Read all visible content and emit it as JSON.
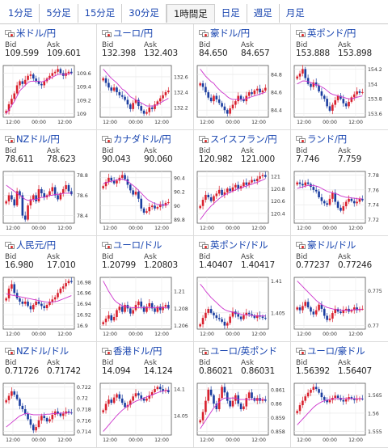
{
  "tabs": [
    {
      "label": "1分足",
      "active": false
    },
    {
      "label": "5分足",
      "active": false
    },
    {
      "label": "15分足",
      "active": false
    },
    {
      "label": "30分足",
      "active": false
    },
    {
      "label": "1時間足",
      "active": true
    },
    {
      "label": "日足",
      "active": false
    },
    {
      "label": "週足",
      "active": false
    },
    {
      "label": "月足",
      "active": false
    }
  ],
  "labels": {
    "bid": "Bid",
    "ask": "Ask"
  },
  "colors": {
    "link": "#1a46b0",
    "up": "#d9212e",
    "down": "#1c3ea0",
    "ma": "#cc33cc"
  },
  "panels": [
    {
      "pair": "米ドル/円",
      "flag": "us",
      "bid": "109.599",
      "ask": "109.601",
      "xticks": [
        "12:00",
        "00:00",
        "12:00"
      ],
      "yticks": [
        "109.6",
        "109.4",
        "109.2",
        "109"
      ],
      "close": [
        109.04,
        109.14,
        109.22,
        109.3,
        109.42,
        109.48,
        109.44,
        109.5,
        109.56,
        109.58,
        109.52,
        109.48,
        109.44,
        109.42,
        109.48,
        109.52,
        109.56,
        109.6,
        109.62,
        109.66,
        109.6,
        109.56,
        109.6,
        109.62,
        109.6
      ],
      "ma": [
        109.0,
        109.06,
        109.12,
        109.18,
        109.26,
        109.34,
        109.38,
        109.42,
        109.46,
        109.48,
        109.48,
        109.48,
        109.48,
        109.47,
        109.48,
        109.5,
        109.52,
        109.54,
        109.56,
        109.58,
        109.58,
        109.58,
        109.58,
        109.59,
        109.6
      ]
    },
    {
      "pair": "ユーロ/円",
      "flag": "eu",
      "bid": "132.398",
      "ask": "132.403",
      "xticks": [
        "12:00",
        "00:00",
        "12:00"
      ],
      "yticks": [
        "132.6",
        "132.4",
        "132.2"
      ],
      "close": [
        132.58,
        132.52,
        132.46,
        132.42,
        132.46,
        132.4,
        132.36,
        132.34,
        132.3,
        132.24,
        132.18,
        132.26,
        132.3,
        132.22,
        132.16,
        132.12,
        132.14,
        132.2,
        132.18,
        132.24,
        132.28,
        132.32,
        132.36,
        132.4,
        132.42
      ],
      "ma": [
        132.7,
        132.66,
        132.62,
        132.58,
        132.55,
        132.52,
        132.48,
        132.44,
        132.42,
        132.38,
        132.34,
        132.32,
        132.3,
        132.28,
        132.26,
        132.24,
        132.22,
        132.22,
        132.22,
        132.22,
        132.24,
        132.26,
        132.28,
        132.3,
        132.32
      ]
    },
    {
      "pair": "豪ドル/円",
      "flag": "au",
      "bid": "84.650",
      "ask": "84.657",
      "xticks": [
        "12:00",
        "00:00",
        "12:00"
      ],
      "yticks": [
        "84.8",
        "84.6",
        "84.4"
      ],
      "close": [
        84.7,
        84.66,
        84.6,
        84.54,
        84.5,
        84.56,
        84.52,
        84.48,
        84.44,
        84.4,
        84.36,
        84.42,
        84.46,
        84.5,
        84.56,
        84.52,
        84.5,
        84.56,
        84.6,
        84.58,
        84.62,
        84.64,
        84.6,
        84.62,
        84.65
      ],
      "ma": [
        84.86,
        84.82,
        84.78,
        84.75,
        84.72,
        84.7,
        84.66,
        84.63,
        84.6,
        84.58,
        84.55,
        84.53,
        84.52,
        84.52,
        84.52,
        84.52,
        84.52,
        84.53,
        84.54,
        84.55,
        84.56,
        84.57,
        84.58,
        84.59,
        84.6
      ]
    },
    {
      "pair": "英ポンド/円",
      "flag": "gb",
      "bid": "153.888",
      "ask": "153.898",
      "xticks": [
        "12:00",
        "00:00",
        "12:00"
      ],
      "yticks": [
        "154.2",
        "154",
        "153.8",
        "153.6"
      ],
      "close": [
        154.1,
        154.14,
        154.2,
        154.08,
        154.0,
        153.96,
        154.02,
        153.98,
        153.9,
        153.84,
        153.8,
        153.7,
        153.64,
        153.72,
        153.78,
        153.84,
        153.8,
        153.74,
        153.7,
        153.76,
        153.82,
        153.86,
        153.9,
        153.88,
        153.89
      ],
      "ma": [
        154.0,
        154.02,
        154.04,
        154.04,
        154.03,
        154.02,
        154.0,
        153.99,
        153.98,
        153.96,
        153.94,
        153.91,
        153.88,
        153.86,
        153.85,
        153.84,
        153.83,
        153.82,
        153.81,
        153.8,
        153.8,
        153.81,
        153.82,
        153.83,
        153.84
      ]
    },
    {
      "pair": "NZドル/円",
      "flag": "nz",
      "bid": "78.611",
      "ask": "78.623",
      "xticks": [
        "12:00",
        "00:00",
        "12:00"
      ],
      "yticks": [
        "78.8",
        "78.6",
        "78.4"
      ],
      "close": [
        78.54,
        78.6,
        78.56,
        78.5,
        78.64,
        78.6,
        78.4,
        78.36,
        78.5,
        78.56,
        78.6,
        78.54,
        78.66,
        78.62,
        78.58,
        78.6,
        78.64,
        78.68,
        78.6,
        78.56,
        78.62,
        78.66,
        78.7,
        78.64,
        78.61
      ],
      "ma": [
        78.7,
        78.68,
        78.66,
        78.64,
        78.62,
        78.6,
        78.58,
        78.56,
        78.55,
        78.55,
        78.56,
        78.56,
        78.57,
        78.58,
        78.58,
        78.59,
        78.6,
        78.6,
        78.61,
        78.61,
        78.61,
        78.62,
        78.62,
        78.62,
        78.62
      ]
    },
    {
      "pair": "カナダドル/円",
      "flag": "ca",
      "bid": "90.043",
      "ask": "90.060",
      "xticks": [
        "12:00",
        "00:00",
        "12:00"
      ],
      "yticks": [
        "90.4",
        "90.2",
        "90",
        "89.8"
      ],
      "close": [
        90.28,
        90.34,
        90.4,
        90.36,
        90.32,
        90.36,
        90.4,
        90.44,
        90.38,
        90.3,
        90.22,
        90.16,
        90.2,
        90.1,
        89.96,
        89.9,
        89.92,
        89.98,
        90.0,
        89.96,
        89.98,
        90.02,
        90.0,
        90.04,
        90.05
      ],
      "ma": [
        90.32,
        90.33,
        90.34,
        90.35,
        90.36,
        90.37,
        90.38,
        90.38,
        90.37,
        90.35,
        90.32,
        90.29,
        90.26,
        90.22,
        90.18,
        90.14,
        90.1,
        90.07,
        90.05,
        90.03,
        90.02,
        90.01,
        90.01,
        90.01,
        90.02
      ]
    },
    {
      "pair": "スイスフラン/円",
      "flag": "ch",
      "bid": "120.982",
      "ask": "121.000",
      "xticks": [
        "12:00",
        "00:00",
        "12:00"
      ],
      "yticks": [
        "121",
        "120.8",
        "120.6",
        "120.4"
      ],
      "close": [
        120.52,
        120.62,
        120.7,
        120.66,
        120.6,
        120.68,
        120.72,
        120.78,
        120.7,
        120.74,
        120.8,
        120.76,
        120.82,
        120.86,
        120.8,
        120.84,
        120.9,
        120.86,
        120.9,
        120.94,
        120.92,
        120.96,
        121.0,
        121.02,
        120.99
      ],
      "ma": [
        120.3,
        120.36,
        120.42,
        120.47,
        120.52,
        120.56,
        120.6,
        120.64,
        120.67,
        120.7,
        120.72,
        120.74,
        120.76,
        120.78,
        120.8,
        120.81,
        120.83,
        120.84,
        120.86,
        120.87,
        120.89,
        120.9,
        120.92,
        120.94,
        120.96
      ]
    },
    {
      "pair": "ランド/円",
      "flag": "za",
      "bid": "7.746",
      "ask": "7.759",
      "xticks": [
        "12:00",
        "00:00",
        "12:00"
      ],
      "yticks": [
        "7.78",
        "7.76",
        "7.74",
        "7.72"
      ],
      "close": [
        7.77,
        7.768,
        7.766,
        7.77,
        7.768,
        7.764,
        7.76,
        7.758,
        7.75,
        7.745,
        7.742,
        7.74,
        7.748,
        7.756,
        7.744,
        7.736,
        7.732,
        7.738,
        7.744,
        7.748,
        7.745,
        7.742,
        7.744,
        7.748,
        7.746
      ],
      "ma": [
        7.762,
        7.763,
        7.764,
        7.765,
        7.766,
        7.766,
        7.766,
        7.765,
        7.764,
        7.762,
        7.76,
        7.758,
        7.757,
        7.756,
        7.755,
        7.754,
        7.752,
        7.751,
        7.75,
        7.75,
        7.749,
        7.749,
        7.748,
        7.748,
        7.748
      ]
    },
    {
      "pair": "人民元/円",
      "flag": "cn",
      "bid": "16.980",
      "ask": "17.010",
      "xticks": [
        "12:00",
        "00:00",
        "12:00"
      ],
      "yticks": [
        "16.98",
        "16.96",
        "16.94",
        "16.92",
        "16.9"
      ],
      "close": [
        16.95,
        16.968,
        16.976,
        16.96,
        16.95,
        16.944,
        16.94,
        16.944,
        16.936,
        16.93,
        16.938,
        16.944,
        16.94,
        16.936,
        16.932,
        16.938,
        16.944,
        16.948,
        16.952,
        16.96,
        16.968,
        16.972,
        16.978,
        16.982,
        16.98
      ],
      "ma": [
        16.958,
        16.957,
        16.956,
        16.955,
        16.954,
        16.953,
        16.952,
        16.951,
        16.95,
        16.949,
        16.948,
        16.947,
        16.946,
        16.945,
        16.944,
        16.943,
        16.943,
        16.943,
        16.944,
        16.945,
        16.947,
        16.949,
        16.951,
        16.953,
        16.955
      ]
    },
    {
      "pair": "ユーロ/ドル",
      "flag": "us",
      "bid": "1.20799",
      "ask": "1.20803",
      "xticks": [
        "12:00",
        "00:00",
        "12:00"
      ],
      "yticks": [
        "1.21",
        "1.208",
        "1.206"
      ],
      "close": [
        1.2064,
        1.2068,
        1.2072,
        1.2066,
        1.207,
        1.2078,
        1.2082,
        1.2076,
        1.2084,
        1.208,
        1.2074,
        1.2078,
        1.2084,
        1.2088,
        1.2082,
        1.2076,
        1.2082,
        1.2086,
        1.208,
        1.2076,
        1.2082,
        1.2078,
        1.2082,
        1.2084,
        1.208
      ],
      "ma": [
        1.2112,
        1.2106,
        1.21,
        1.2095,
        1.209,
        1.2087,
        1.2085,
        1.2083,
        1.2082,
        1.2082,
        1.2081,
        1.2081,
        1.2081,
        1.2081,
        1.2081,
        1.2081,
        1.2081,
        1.2081,
        1.2081,
        1.2081,
        1.2081,
        1.2081,
        1.2081,
        1.2081,
        1.2081
      ]
    },
    {
      "pair": "英ポンド/ドル",
      "flag": "gb",
      "bid": "1.40407",
      "ask": "1.40417",
      "xticks": [
        "12:00",
        "00:00",
        "12:00"
      ],
      "yticks": [
        "1.41",
        "1.405"
      ],
      "close": [
        1.4032,
        1.4042,
        1.405,
        1.4056,
        1.405,
        1.4046,
        1.4042,
        1.404,
        1.4036,
        1.403,
        1.4034,
        1.4044,
        1.4052,
        1.4048,
        1.4044,
        1.404,
        1.4046,
        1.405,
        1.4048,
        1.4046,
        1.4042,
        1.4046,
        1.4044,
        1.4042,
        1.4041
      ],
      "ma": [
        1.4095,
        1.409,
        1.4084,
        1.4079,
        1.4074,
        1.407,
        1.4066,
        1.4062,
        1.4058,
        1.4055,
        1.4053,
        1.4052,
        1.4051,
        1.405,
        1.4049,
        1.4048,
        1.4047,
        1.4047,
        1.4046,
        1.4046,
        1.4045,
        1.4045,
        1.4045,
        1.4045,
        1.4045
      ]
    },
    {
      "pair": "豪ドル/ドル",
      "flag": "au",
      "bid": "0.77237",
      "ask": "0.77246",
      "xticks": [
        "12:00",
        "00:00",
        "12:00"
      ],
      "yticks": [
        "0.775",
        "0.77"
      ],
      "close": [
        0.7726,
        0.7722,
        0.7728,
        0.7734,
        0.7726,
        0.772,
        0.7716,
        0.7722,
        0.773,
        0.7724,
        0.7714,
        0.7708,
        0.771,
        0.7718,
        0.7724,
        0.772,
        0.7718,
        0.7722,
        0.7724,
        0.772,
        0.7722,
        0.7726,
        0.7722,
        0.7724,
        0.7724
      ],
      "ma": [
        0.7764,
        0.776,
        0.7756,
        0.7752,
        0.7748,
        0.7744,
        0.774,
        0.7736,
        0.7733,
        0.773,
        0.7728,
        0.7726,
        0.7725,
        0.7724,
        0.7723,
        0.7723,
        0.7722,
        0.7722,
        0.7722,
        0.7722,
        0.7722,
        0.7723,
        0.7723,
        0.7723,
        0.7723
      ]
    },
    {
      "pair": "NZドル/ドル",
      "flag": "nz",
      "bid": "0.71726",
      "ask": "0.71742",
      "xticks": [
        "12:00",
        "00:00",
        "12:00"
      ],
      "yticks": [
        "0.722",
        "0.72",
        "0.718",
        "0.716",
        "0.714"
      ],
      "close": [
        0.7196,
        0.7204,
        0.7212,
        0.7206,
        0.7198,
        0.7186,
        0.718,
        0.7172,
        0.7162,
        0.7152,
        0.7142,
        0.7148,
        0.716,
        0.7168,
        0.7164,
        0.7158,
        0.7162,
        0.717,
        0.7176,
        0.7172,
        0.7168,
        0.7172,
        0.7176,
        0.7174,
        0.7173
      ],
      "ma": [
        0.7148,
        0.7152,
        0.7156,
        0.716,
        0.7164,
        0.7168,
        0.717,
        0.7172,
        0.7172,
        0.7171,
        0.717,
        0.717,
        0.717,
        0.717,
        0.717,
        0.7171,
        0.7171,
        0.7172,
        0.7172,
        0.7172,
        0.7173,
        0.7173,
        0.7173,
        0.7174,
        0.7174
      ]
    },
    {
      "pair": "香港ドル/円",
      "flag": "hk",
      "bid": "14.094",
      "ask": "14.124",
      "xticks": [
        "12:00",
        "00:00",
        "12:00"
      ],
      "yticks": [
        "14.1",
        "14.05"
      ],
      "close": [
        14.06,
        14.072,
        14.08,
        14.074,
        14.084,
        14.09,
        14.082,
        14.074,
        14.066,
        14.07,
        14.078,
        14.086,
        14.092,
        14.088,
        14.082,
        14.078,
        14.082,
        14.088,
        14.094,
        14.1,
        14.104,
        14.1,
        14.096,
        14.098,
        14.094
      ],
      "ma": [
        14.02,
        14.026,
        14.032,
        14.038,
        14.044,
        14.05,
        14.055,
        14.06,
        14.064,
        14.068,
        14.071,
        14.074,
        14.077,
        14.079,
        14.081,
        14.083,
        14.085,
        14.087,
        14.089,
        14.091,
        14.093,
        14.095,
        14.096,
        14.097,
        14.098
      ]
    },
    {
      "pair": "ユーロ/英ポンド",
      "flag": "eu",
      "bid": "0.86021",
      "ask": "0.86031",
      "xticks": [
        "12:00",
        "00:00",
        "12:00"
      ],
      "yticks": [
        "0.861",
        "0.86",
        "0.859",
        "0.858"
      ],
      "close": [
        0.8588,
        0.8594,
        0.8602,
        0.861,
        0.8606,
        0.86,
        0.8596,
        0.8604,
        0.8612,
        0.8608,
        0.8602,
        0.8598,
        0.8602,
        0.8606,
        0.86,
        0.8596,
        0.8598,
        0.8604,
        0.8608,
        0.8604,
        0.8602,
        0.8604,
        0.8602,
        0.8603,
        0.8602
      ],
      "ma": [
        0.8582,
        0.8585,
        0.8588,
        0.8591,
        0.8594,
        0.8597,
        0.8599,
        0.8601,
        0.8603,
        0.8604,
        0.8604,
        0.8604,
        0.8604,
        0.8604,
        0.8603,
        0.8603,
        0.8603,
        0.8603,
        0.8603,
        0.8603,
        0.8603,
        0.8603,
        0.8603,
        0.8603,
        0.8603
      ]
    },
    {
      "pair": "ユーロ/豪ドル",
      "flag": "eu",
      "bid": "1.56392",
      "ask": "1.56407",
      "xticks": [
        "12:00",
        "00:00",
        "12:00"
      ],
      "yticks": [
        "1.565",
        "1.56",
        "1.555"
      ],
      "close": [
        1.5606,
        1.5622,
        1.5634,
        1.5646,
        1.5656,
        1.5664,
        1.5672,
        1.5666,
        1.5656,
        1.5644,
        1.5636,
        1.563,
        1.5636,
        1.5642,
        1.5648,
        1.5642,
        1.5636,
        1.5632,
        1.5638,
        1.5644,
        1.564,
        1.5636,
        1.5638,
        1.564,
        1.5639
      ],
      "ma": [
        1.5568,
        1.5576,
        1.5584,
        1.5592,
        1.56,
        1.5608,
        1.5616,
        1.5622,
        1.5627,
        1.5631,
        1.5634,
        1.5636,
        1.5638,
        1.5639,
        1.564,
        1.564,
        1.564,
        1.564,
        1.564,
        1.564,
        1.564,
        1.564,
        1.564,
        1.564,
        1.564
      ]
    }
  ]
}
